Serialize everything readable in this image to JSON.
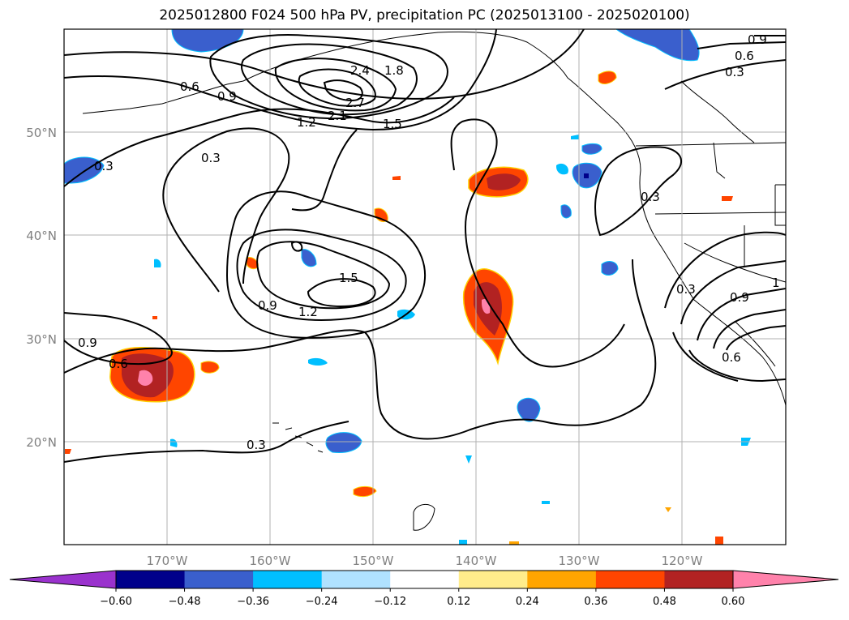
{
  "title": "2025012800 F024 500 hPa PV, precipitation PC (2025013100 - 2025020100)",
  "map": {
    "lat_labels": [
      "50°N",
      "40°N",
      "30°N",
      "20°N"
    ],
    "lon_labels": [
      "170°W",
      "160°W",
      "150°W",
      "140°W",
      "130°W",
      "120°W"
    ],
    "gridlines": true
  },
  "contour_labels": [
    "0.6",
    "0.9",
    "0.3",
    "1.2",
    "2.1",
    "2.7",
    "2.4",
    "1.8",
    "1.5",
    "0.3",
    "0.3",
    "1.5",
    "1.2",
    "0.9",
    "0.6",
    "0.9",
    "0.3",
    "0.9",
    "0.6",
    "0.3",
    "0.3",
    "0.9",
    "0.6",
    "1"
  ],
  "colorbar": {
    "ticks": [
      "−0.60",
      "−0.48",
      "−0.36",
      "−0.24",
      "−0.12",
      "0.12",
      "0.24",
      "0.36",
      "0.48",
      "0.60"
    ],
    "colors": [
      "#9a32cd",
      "#00008b",
      "#3a5fcd",
      "#00bfff",
      "#b0e2ff",
      "#ffffff",
      "#ffec8b",
      "#ffa500",
      "#ff4500",
      "#b22222",
      "#ff82ab",
      "#ff82ab"
    ]
  }
}
